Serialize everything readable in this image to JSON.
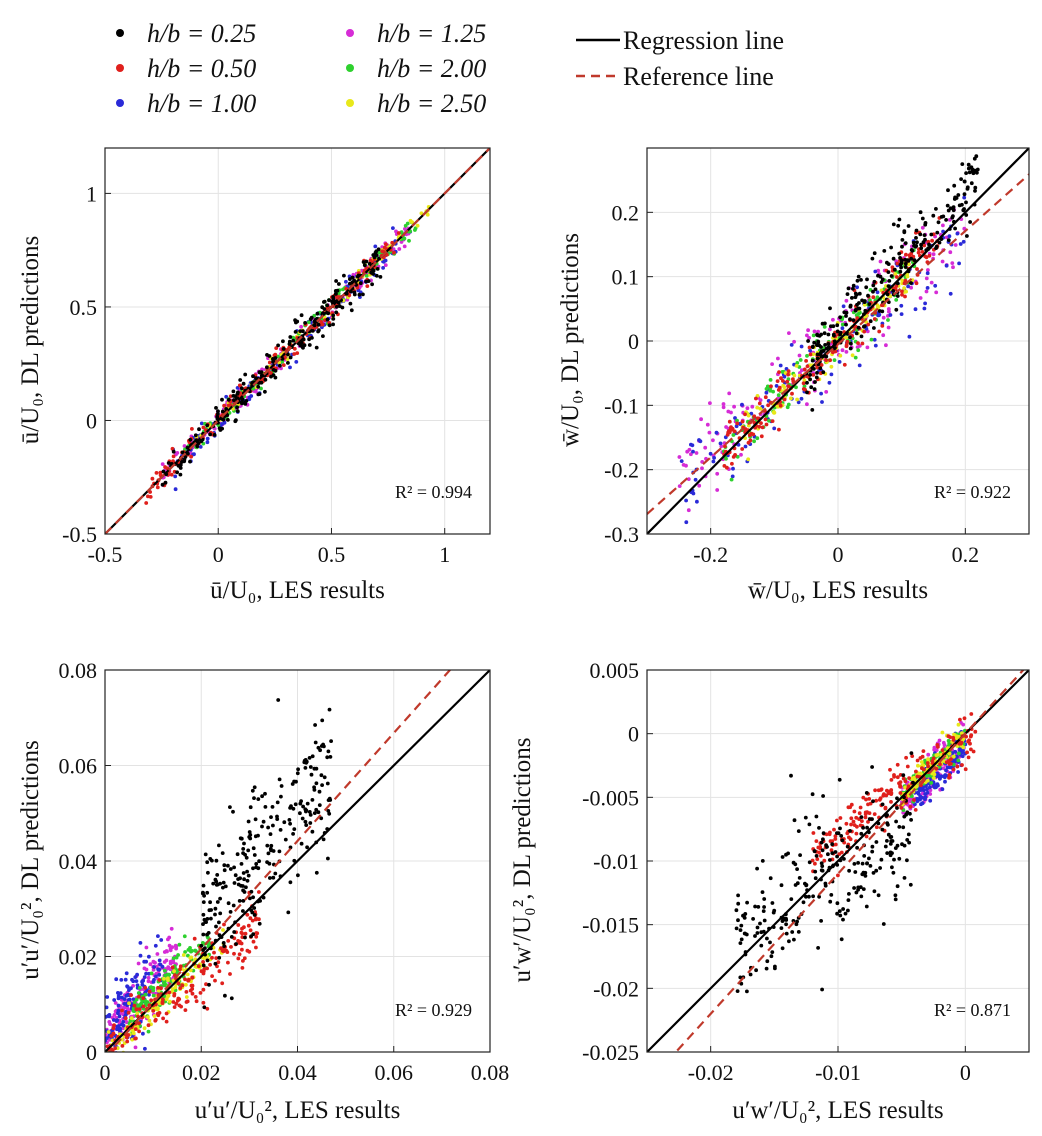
{
  "legend_groups": [
    {
      "label": "h/b = 0.25",
      "color": "#000000"
    },
    {
      "label": "h/b = 0.50",
      "color": "#e0201c"
    },
    {
      "label": "h/b = 1.00",
      "color": "#2a2ad8"
    },
    {
      "label": "h/b = 1.25",
      "color": "#d62cd6"
    },
    {
      "label": "h/b = 2.00",
      "color": "#2ed12e"
    },
    {
      "label": "h/b = 2.50",
      "color": "#e8e81a"
    }
  ],
  "legend_lines": [
    {
      "label": "Regression line",
      "color": "#000000",
      "style": "solid"
    },
    {
      "label": "Reference line",
      "color": "#c0392b",
      "style": "dashed"
    }
  ],
  "chart_data": [
    {
      "type": "scatter",
      "xlabel": "ū/U₀, LES results",
      "ylabel": "ū/U₀, DL predictions",
      "xlim": [
        -0.5,
        1.2
      ],
      "ylim": [
        -0.5,
        1.2
      ],
      "xticks": [
        -0.5,
        0,
        0.5,
        1
      ],
      "yticks": [
        -0.5,
        0,
        0.5,
        1
      ],
      "xtick_labels": [
        "-0.5",
        "0",
        "0.5",
        "1"
      ],
      "ytick_labels": [
        "-0.5",
        "0",
        "0.5",
        "1"
      ],
      "annotation": "R² = 0.994",
      "regression_line": {
        "slope": 1.0,
        "intercept": 0.0
      },
      "reference_line": {
        "slope": 1.0,
        "intercept": 0.0
      },
      "series": [
        {
          "group": 0,
          "x_range": [
            -0.25,
            0.72
          ],
          "slope": 1.0,
          "intercept": 0.0,
          "noise": 0.04
        },
        {
          "group": 1,
          "x_range": [
            -0.32,
            0.8
          ],
          "slope": 1.0,
          "intercept": 0.0,
          "noise": 0.025
        },
        {
          "group": 2,
          "x_range": [
            -0.2,
            0.85
          ],
          "slope": 1.0,
          "intercept": -0.01,
          "noise": 0.03
        },
        {
          "group": 3,
          "x_range": [
            -0.25,
            0.85
          ],
          "slope": 1.0,
          "intercept": 0.0,
          "noise": 0.025
        },
        {
          "group": 4,
          "x_range": [
            -0.15,
            0.9
          ],
          "slope": 1.0,
          "intercept": 0.0,
          "noise": 0.02
        },
        {
          "group": 5,
          "x_range": [
            -0.1,
            0.93
          ],
          "slope": 1.0,
          "intercept": 0.0,
          "noise": 0.02
        }
      ]
    },
    {
      "type": "scatter",
      "xlabel": "w̄/U₀, LES results",
      "ylabel": "w̄/U₀, DL predictions",
      "xlim": [
        -0.3,
        0.3
      ],
      "ylim": [
        -0.3,
        0.3
      ],
      "xticks": [
        -0.2,
        0,
        0.2
      ],
      "yticks": [
        -0.3,
        -0.2,
        -0.1,
        0,
        0.1,
        0.2
      ],
      "xtick_labels": [
        "-0.2",
        "0",
        "0.2"
      ],
      "ytick_labels": [
        "-0.3",
        "-0.2",
        "-0.1",
        "0",
        "0.1",
        "0.2"
      ],
      "annotation": "R² = 0.922",
      "regression_line": {
        "slope": 1.0,
        "intercept": 0.0
      },
      "reference_line": {
        "slope": 0.88,
        "intercept": -0.005
      },
      "series": [
        {
          "group": 0,
          "x_range": [
            -0.05,
            0.22
          ],
          "slope": 1.1,
          "intercept": 0.01,
          "noise": 0.03
        },
        {
          "group": 1,
          "x_range": [
            -0.18,
            0.16
          ],
          "slope": 0.95,
          "intercept": 0.0,
          "noise": 0.02
        },
        {
          "group": 2,
          "x_range": [
            -0.25,
            0.2
          ],
          "slope": 0.85,
          "intercept": -0.01,
          "noise": 0.03
        },
        {
          "group": 3,
          "x_range": [
            -0.25,
            0.2
          ],
          "slope": 0.85,
          "intercept": 0.0,
          "noise": 0.035
        },
        {
          "group": 4,
          "x_range": [
            -0.18,
            0.12
          ],
          "slope": 0.95,
          "intercept": 0.0,
          "noise": 0.02
        },
        {
          "group": 5,
          "x_range": [
            -0.15,
            0.12
          ],
          "slope": 0.95,
          "intercept": 0.0,
          "noise": 0.015
        }
      ]
    },
    {
      "type": "scatter",
      "xlabel": "u′u′/U₀², LES results",
      "ylabel": "u′u′/U₀², DL predictions",
      "xlim": [
        0,
        0.08
      ],
      "ylim": [
        0,
        0.08
      ],
      "xticks": [
        0,
        0.02,
        0.04,
        0.06,
        0.08
      ],
      "yticks": [
        0,
        0.02,
        0.04,
        0.06,
        0.08
      ],
      "xtick_labels": [
        "0",
        "0.02",
        "0.04",
        "0.06",
        "0.08"
      ],
      "ytick_labels": [
        "0",
        "0.02",
        "0.04",
        "0.06",
        "0.08"
      ],
      "annotation": "R² = 0.929",
      "regression_line": {
        "slope": 1.0,
        "intercept": 0.0
      },
      "reference_line": {
        "slope": 1.13,
        "intercept": -0.001
      },
      "series": [
        {
          "group": 0,
          "x_range": [
            0.02,
            0.047
          ],
          "slope": 1.2,
          "intercept": 0.002,
          "noise": 0.008
        },
        {
          "group": 1,
          "x_range": [
            0.0,
            0.032
          ],
          "slope": 0.85,
          "intercept": 0.0,
          "noise": 0.003
        },
        {
          "group": 2,
          "x_range": [
            0.0,
            0.012
          ],
          "slope": 1.2,
          "intercept": 0.004,
          "noise": 0.004
        },
        {
          "group": 3,
          "x_range": [
            0.0,
            0.015
          ],
          "slope": 1.1,
          "intercept": 0.003,
          "noise": 0.003
        },
        {
          "group": 4,
          "x_range": [
            0.005,
            0.022
          ],
          "slope": 1.0,
          "intercept": 0.002,
          "noise": 0.002
        },
        {
          "group": 5,
          "x_range": [
            0.0,
            0.025
          ],
          "slope": 0.95,
          "intercept": 0.0,
          "noise": 0.002
        }
      ]
    },
    {
      "type": "scatter",
      "xlabel": "u′w′/U₀², LES results",
      "ylabel": "u′w′/U₀², DL predictions",
      "xlim": [
        -0.025,
        0.005
      ],
      "ylim": [
        -0.025,
        0.005
      ],
      "xticks": [
        -0.02,
        -0.01,
        0
      ],
      "yticks": [
        -0.025,
        -0.02,
        -0.015,
        -0.01,
        -0.005,
        0,
        0.005
      ],
      "xtick_labels": [
        "-0.02",
        "-0.01",
        "0"
      ],
      "ytick_labels": [
        "-0.025",
        "-0.02",
        "-0.015",
        "-0.01",
        "-0.005",
        "0",
        "0.005"
      ],
      "annotation": "R² = 0.871",
      "regression_line": {
        "slope": 1.0,
        "intercept": 0.0
      },
      "reference_line": {
        "slope": 1.1,
        "intercept": 0.0
      },
      "series": [
        {
          "group": 0,
          "x_range": [
            -0.018,
            -0.004
          ],
          "slope": 0.6,
          "intercept": -0.005,
          "noise": 0.003
        },
        {
          "group": 1,
          "x_range": [
            -0.012,
            0.0008
          ],
          "slope": 0.75,
          "intercept": -0.0005,
          "noise": 0.001
        },
        {
          "group": 2,
          "x_range": [
            -0.004,
            0.0
          ],
          "slope": 1.0,
          "intercept": -0.001,
          "noise": 0.0008
        },
        {
          "group": 3,
          "x_range": [
            -0.005,
            0.0
          ],
          "slope": 1.0,
          "intercept": -0.0005,
          "noise": 0.0008
        },
        {
          "group": 4,
          "x_range": [
            -0.005,
            0.0
          ],
          "slope": 1.0,
          "intercept": 0.0,
          "noise": 0.0005
        },
        {
          "group": 5,
          "x_range": [
            -0.005,
            0.0
          ],
          "slope": 1.0,
          "intercept": 0.0,
          "noise": 0.0005
        }
      ]
    }
  ]
}
